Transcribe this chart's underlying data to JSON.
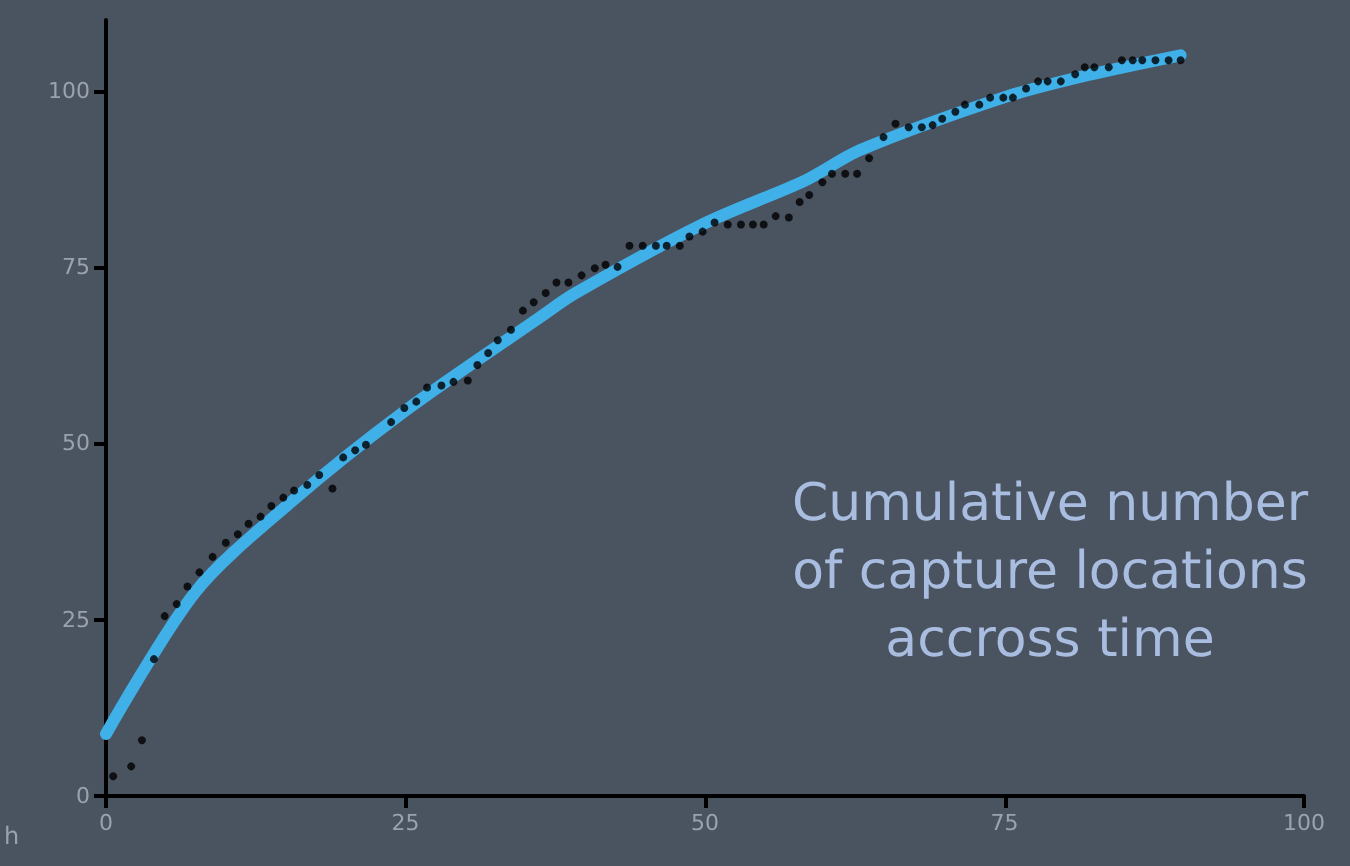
{
  "chart_data": {
    "type": "scatter",
    "xlabel": "h",
    "annotations": [
      "Cumulative number of capture locations accross time"
    ],
    "xlim": [
      0,
      100
    ],
    "xticks": [
      0,
      25,
      50,
      75,
      100
    ],
    "ylim": [
      0,
      110
    ],
    "yticks": [
      0,
      25,
      50,
      75,
      100
    ],
    "series": [
      {
        "marker": "circle",
        "color": "#000000",
        "x": [
          0.6,
          2.1,
          3.0,
          4.0,
          4.9,
          5.9,
          6.8,
          7.8,
          8.9,
          10.0,
          11.0,
          11.9,
          12.9,
          13.8,
          14.8,
          15.7,
          16.8,
          17.8,
          18.9,
          19.8,
          20.8,
          21.7,
          23.8,
          24.9,
          25.9,
          26.8,
          28.0,
          29.0,
          30.2,
          31.0,
          31.9,
          32.7,
          33.8,
          34.8,
          35.7,
          36.7,
          37.6,
          38.6,
          39.7,
          40.8,
          41.7,
          42.7,
          43.7,
          44.8,
          45.9,
          46.8,
          47.9,
          48.7,
          49.8,
          50.8,
          51.9,
          53.0,
          54.0,
          54.9,
          55.9,
          57.0,
          57.9,
          58.7,
          59.8,
          60.6,
          61.7,
          62.7,
          63.7,
          64.9,
          65.9,
          67.0,
          68.1,
          69.0,
          69.8,
          70.9,
          71.7,
          72.9,
          73.8,
          74.9,
          75.7,
          76.8,
          77.8,
          78.6,
          79.7,
          80.9,
          81.7,
          82.5,
          83.7,
          84.8,
          85.7,
          86.5,
          87.6,
          88.7,
          89.7
        ],
        "values": [
          2.8,
          4.2,
          7.9,
          19.4,
          25.5,
          27.2,
          29.7,
          31.7,
          33.9,
          35.9,
          37.1,
          38.6,
          39.6,
          41.1,
          42.3,
          43.3,
          44.1,
          45.5,
          43.6,
          48.0,
          49.0,
          49.8,
          53.0,
          55.0,
          55.9,
          57.9,
          58.2,
          58.7,
          58.9,
          61.1,
          62.8,
          64.6,
          66.1,
          68.8,
          70.0,
          71.3,
          72.8,
          72.8,
          73.8,
          74.8,
          75.3,
          75.0,
          78.0,
          78.0,
          78.0,
          78.0,
          78.0,
          79.3,
          80.0,
          81.3,
          81.0,
          81.0,
          81.0,
          81.0,
          82.2,
          82.0,
          84.2,
          85.2,
          87.0,
          88.2,
          88.2,
          88.2,
          90.4,
          93.4,
          95.3,
          94.8,
          94.8,
          95.1,
          96.0,
          97.0,
          98.0,
          98.0,
          99.0,
          99.0,
          99.0,
          100.3,
          101.3,
          101.3,
          101.3,
          102.3,
          103.3,
          103.3,
          103.3,
          104.3,
          104.3,
          104.3,
          104.3,
          104.3,
          104.3
        ]
      },
      {
        "type": "line",
        "color": "#3fb0e8",
        "x": [
          0,
          7.5,
          15.4,
          24.9,
          36,
          39.2,
          50,
          58.3,
          63,
          74.9,
          82,
          89.7
        ],
        "values": [
          8.8,
          29,
          41.6,
          54.5,
          67.6,
          71.3,
          81.2,
          87.2,
          91.6,
          99,
          102.2,
          105
        ]
      }
    ]
  }
}
